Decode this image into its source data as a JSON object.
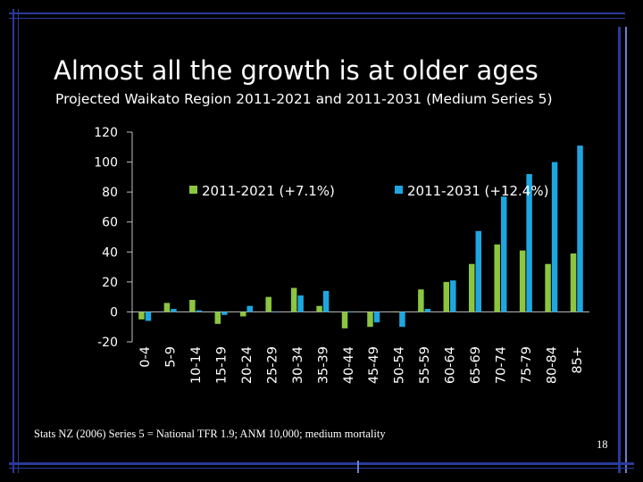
{
  "slide": {
    "title": "Almost all the growth is at older ages",
    "subtitle": "Projected Waikato Region 2011-2021 and 2011-2031 (Medium Series 5)",
    "source_note": "Stats NZ (2006) Series 5 = National TFR 1.9; ANM 10,000; medium mortality",
    "page_number": "18"
  },
  "colors": {
    "background": "#000000",
    "series_2021": "#8cc63f",
    "series_2031": "#1ea6e0",
    "axis": "#bfbfbf",
    "frame": "#2a3a9a"
  },
  "chart_data": {
    "type": "bar",
    "title": "",
    "xlabel": "",
    "ylabel": "",
    "ylim": [
      -20,
      120
    ],
    "yticks": [
      -20,
      0,
      20,
      40,
      60,
      80,
      100,
      120
    ],
    "grid": false,
    "legend_position": "top, inside plot",
    "categories": [
      "0-4",
      "5-9",
      "10-14",
      "15-19",
      "20-24",
      "25-29",
      "30-34",
      "35-39",
      "40-44",
      "45-49",
      "50-54",
      "55-59",
      "60-64",
      "65-69",
      "70-74",
      "75-79",
      "80-84",
      "85+"
    ],
    "series": [
      {
        "name": "2011-2021 (+7.1%)",
        "color": "#8cc63f",
        "values": [
          -5,
          6,
          8,
          -8,
          -3,
          10,
          16,
          4,
          -11,
          -10,
          0,
          15,
          20,
          32,
          45,
          41,
          32,
          39
        ]
      },
      {
        "name": "2011-2031 (+12.4%)",
        "color": "#1ea6e0",
        "values": [
          -6,
          2,
          1,
          -2,
          4,
          0,
          11,
          14,
          0,
          -7,
          -10,
          2,
          21,
          54,
          77,
          92,
          100,
          111
        ]
      }
    ]
  }
}
